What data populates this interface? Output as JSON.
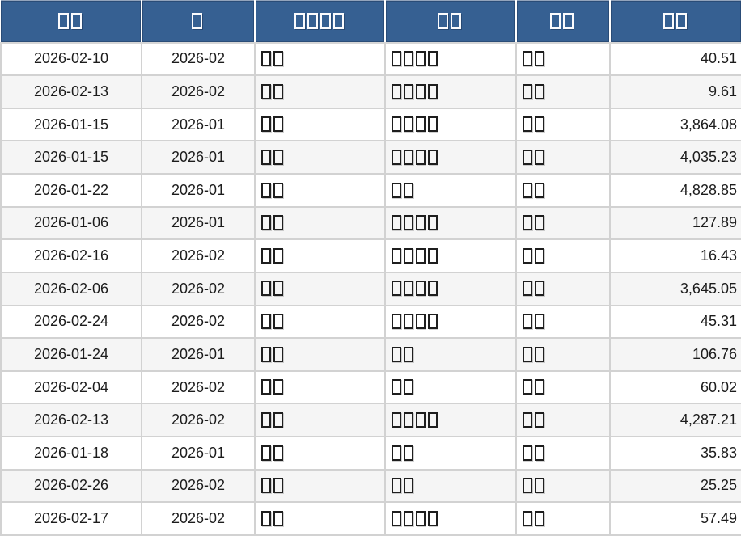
{
  "colors": {
    "header_bg": "#366092",
    "header_text": "#ffffff",
    "row_alt_bg": "#f5f5f5",
    "grid_border": "#d2d2d2",
    "cell_text": "#1c1c1c"
  },
  "table": {
    "columns": [
      {
        "key": "date",
        "label": "□□",
        "align": "center"
      },
      {
        "key": "month",
        "label": "□",
        "align": "center"
      },
      {
        "key": "field3",
        "label": "□□□□",
        "align": "left"
      },
      {
        "key": "field4",
        "label": "□□",
        "align": "left"
      },
      {
        "key": "field5",
        "label": "□□",
        "align": "left"
      },
      {
        "key": "amount",
        "label": "□□",
        "align": "right"
      }
    ],
    "rows": [
      {
        "date": "2026-02-10",
        "month": "2026-02",
        "field3": "□□",
        "field4": "□□□□",
        "field5": "□□",
        "amount": "40.51"
      },
      {
        "date": "2026-02-13",
        "month": "2026-02",
        "field3": "□□",
        "field4": "□□□□",
        "field5": "□□",
        "amount": "9.61"
      },
      {
        "date": "2026-01-15",
        "month": "2026-01",
        "field3": "□□",
        "field4": "□□□□",
        "field5": "□□",
        "amount": "3,864.08"
      },
      {
        "date": "2026-01-15",
        "month": "2026-01",
        "field3": "□□",
        "field4": "□□□□",
        "field5": "□□",
        "amount": "4,035.23"
      },
      {
        "date": "2026-01-22",
        "month": "2026-01",
        "field3": "□□",
        "field4": "□□",
        "field5": "□□",
        "amount": "4,828.85"
      },
      {
        "date": "2026-01-06",
        "month": "2026-01",
        "field3": "□□",
        "field4": "□□□□",
        "field5": "□□",
        "amount": "127.89"
      },
      {
        "date": "2026-02-16",
        "month": "2026-02",
        "field3": "□□",
        "field4": "□□□□",
        "field5": "□□",
        "amount": "16.43"
      },
      {
        "date": "2026-02-06",
        "month": "2026-02",
        "field3": "□□",
        "field4": "□□□□",
        "field5": "□□",
        "amount": "3,645.05"
      },
      {
        "date": "2026-02-24",
        "month": "2026-02",
        "field3": "□□",
        "field4": "□□□□",
        "field5": "□□",
        "amount": "45.31"
      },
      {
        "date": "2026-01-24",
        "month": "2026-01",
        "field3": "□□",
        "field4": "□□",
        "field5": "□□",
        "amount": "106.76"
      },
      {
        "date": "2026-02-04",
        "month": "2026-02",
        "field3": "□□",
        "field4": "□□",
        "field5": "□□",
        "amount": "60.02"
      },
      {
        "date": "2026-02-13",
        "month": "2026-02",
        "field3": "□□",
        "field4": "□□□□",
        "field5": "□□",
        "amount": "4,287.21"
      },
      {
        "date": "2026-01-18",
        "month": "2026-01",
        "field3": "□□",
        "field4": "□□",
        "field5": "□□",
        "amount": "35.83"
      },
      {
        "date": "2026-02-26",
        "month": "2026-02",
        "field3": "□□",
        "field4": "□□",
        "field5": "□□",
        "amount": "25.25"
      },
      {
        "date": "2026-02-17",
        "month": "2026-02",
        "field3": "□□",
        "field4": "□□□□",
        "field5": "□□",
        "amount": "57.49"
      }
    ]
  }
}
